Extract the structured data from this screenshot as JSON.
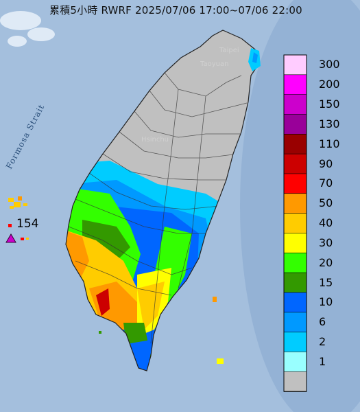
{
  "title": "累積5小時 RWRF 2025/07/06 17:00~07/06 22:00",
  "strait_label": "Formosa Strait",
  "max_value": "154",
  "city_labels": {
    "taipei": "Taipei",
    "taoyuan": "Taoyuan",
    "hsinchu": "Hsinchu"
  },
  "legend": [
    {
      "label": "300",
      "color": "#ffccff"
    },
    {
      "label": "200",
      "color": "#ff00ff"
    },
    {
      "label": "150",
      "color": "#cc00cc"
    },
    {
      "label": "130",
      "color": "#990099"
    },
    {
      "label": "110",
      "color": "#990000"
    },
    {
      "label": "90",
      "color": "#cc0000"
    },
    {
      "label": "70",
      "color": "#ff0000"
    },
    {
      "label": "50",
      "color": "#ff9900"
    },
    {
      "label": "40",
      "color": "#ffcc00"
    },
    {
      "label": "30",
      "color": "#ffff00"
    },
    {
      "label": "20",
      "color": "#33ff00"
    },
    {
      "label": "15",
      "color": "#339900"
    },
    {
      "label": "10",
      "color": "#0066ff"
    },
    {
      "label": "6",
      "color": "#0099ff"
    },
    {
      "label": "2",
      "color": "#00ccff"
    },
    {
      "label": "1",
      "color": "#99ffff"
    },
    {
      "label": "",
      "color": "#c0c0c0"
    }
  ]
}
